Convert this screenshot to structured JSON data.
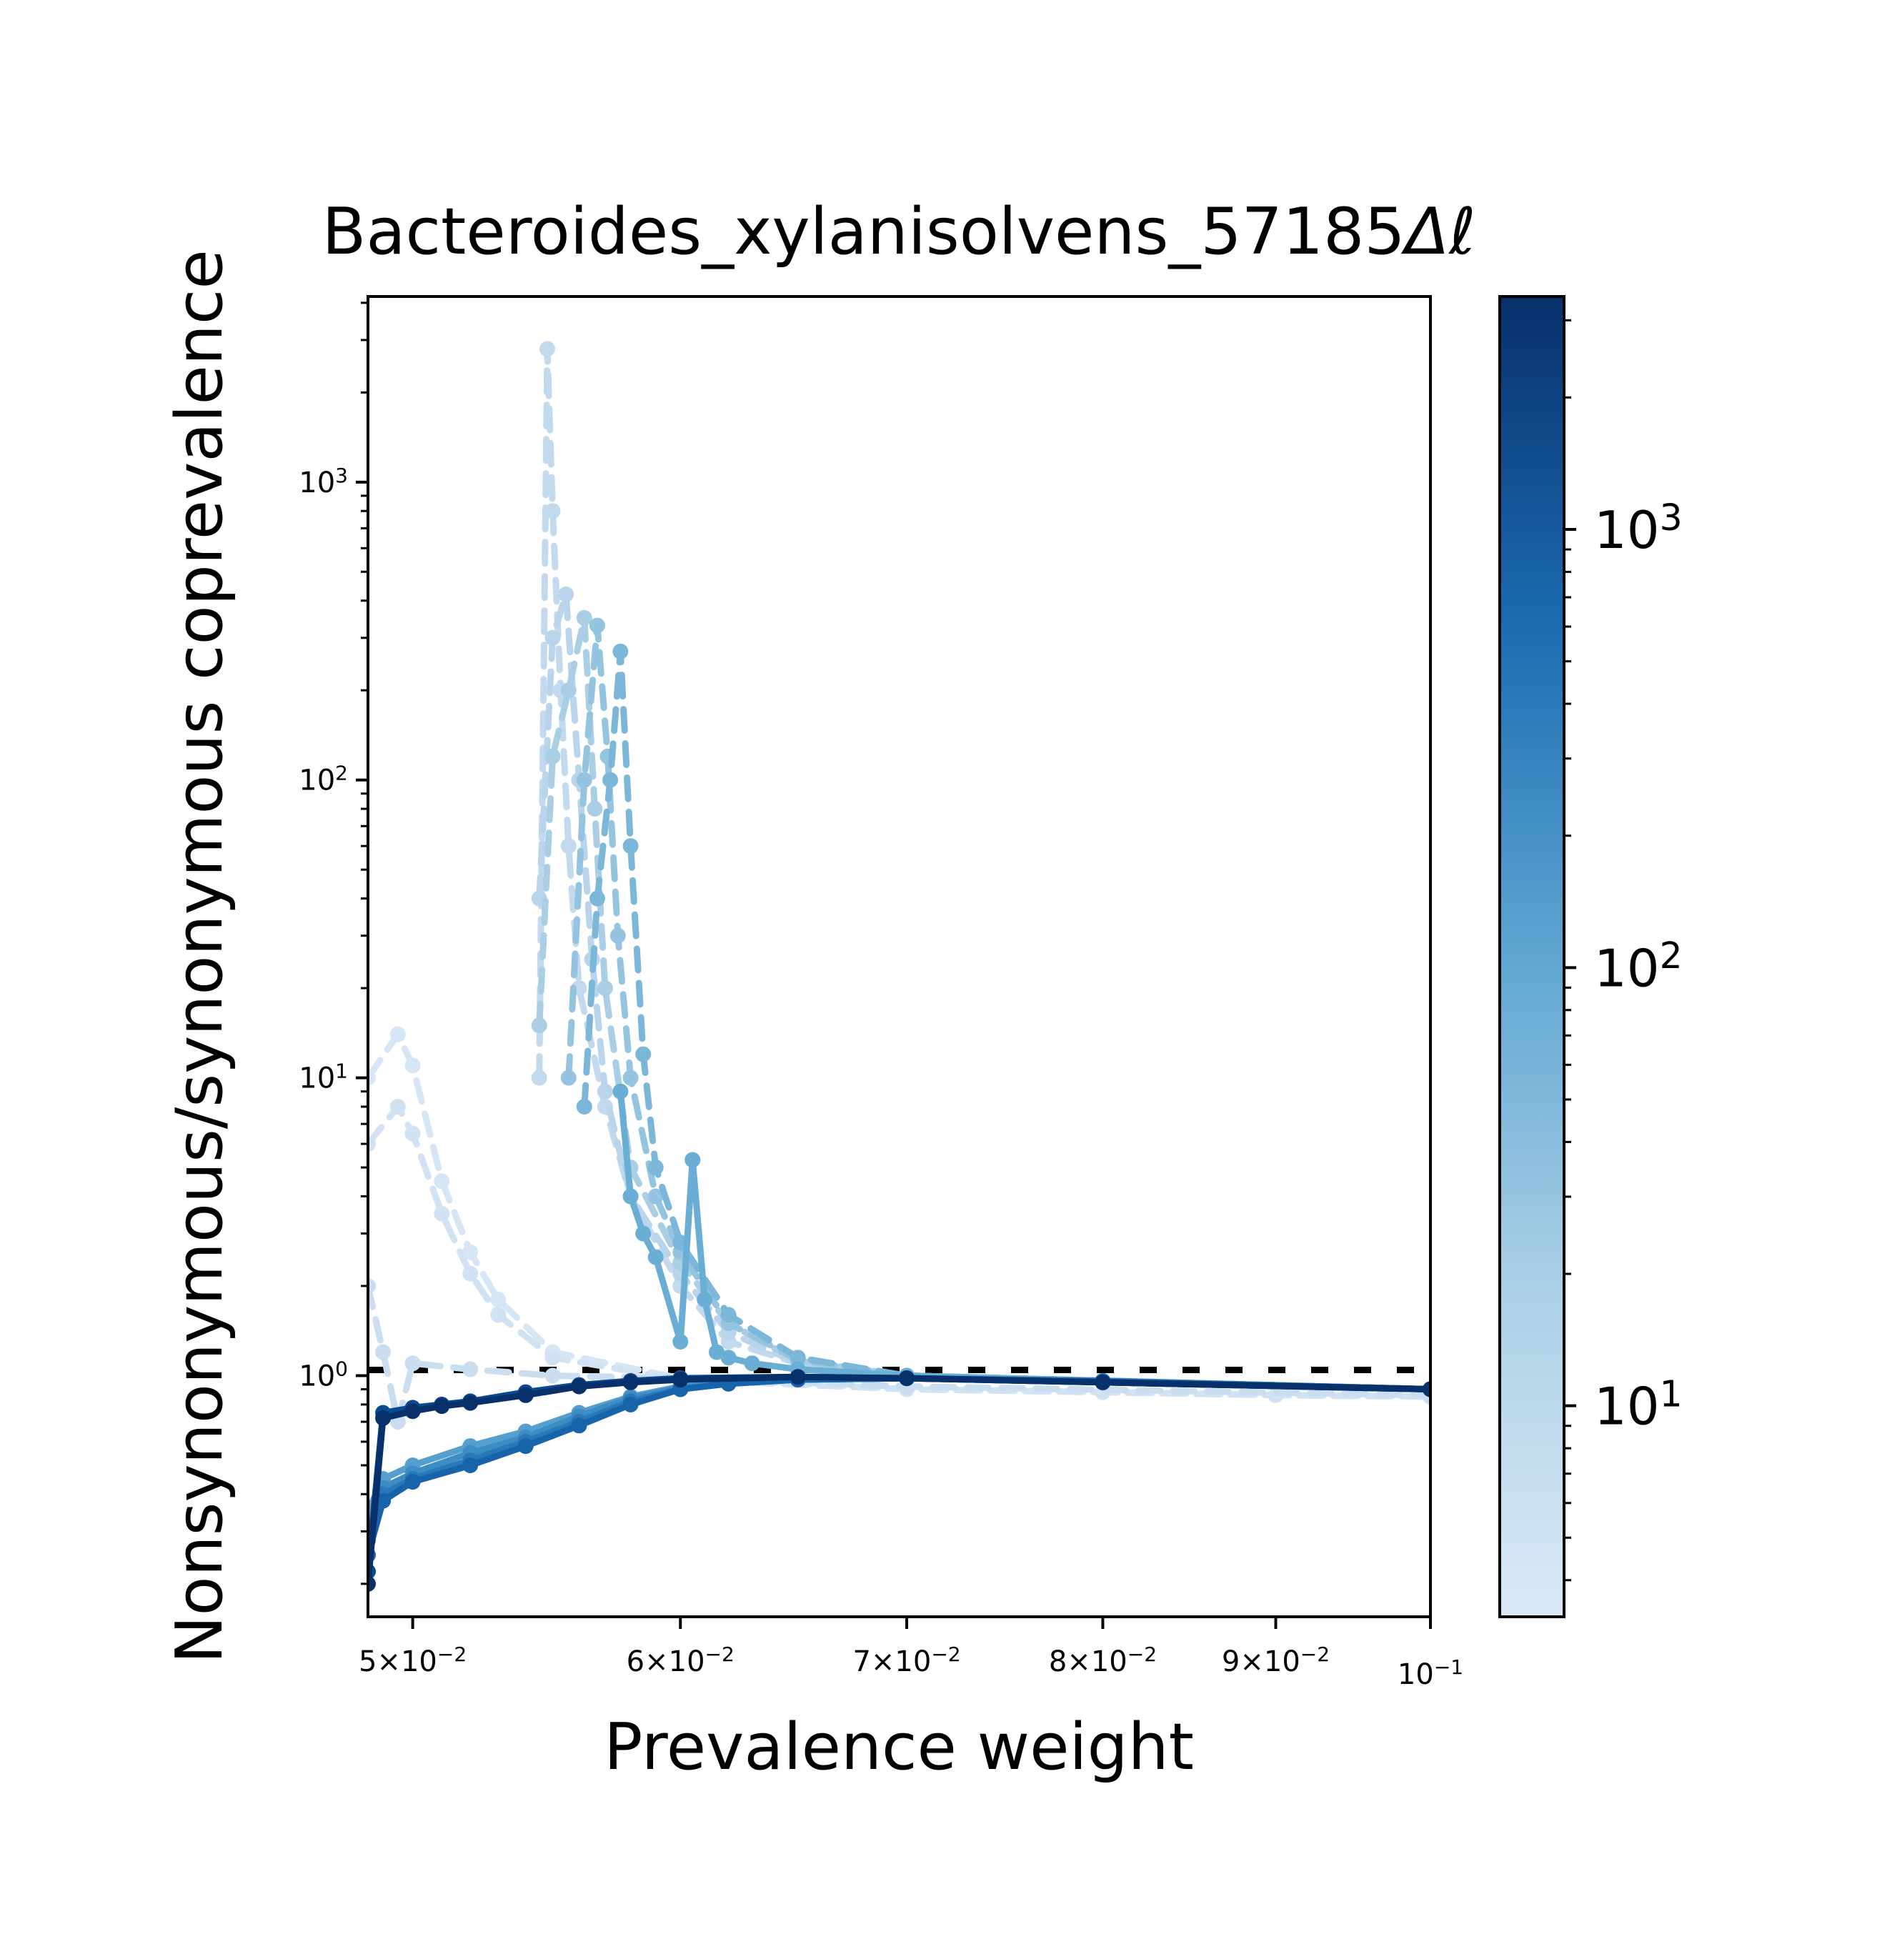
{
  "chart_data": {
    "type": "line",
    "title": "Bacteroides_xylanisolvens_57185",
    "colorbar_label": "Δℓ",
    "xlabel": "Prevalence weight",
    "ylabel": "Nonsynonymous/synonymous coprevalence",
    "xscale": "log",
    "yscale": "log",
    "xlim": [
      0.0485,
      0.1
    ],
    "ylim": [
      0.155,
      4200
    ],
    "x_ticks": [
      {
        "value": 0.05,
        "label": "5×10⁻²"
      },
      {
        "value": 0.06,
        "label": "6×10⁻²"
      },
      {
        "value": 0.07,
        "label": "7×10⁻²"
      },
      {
        "value": 0.08,
        "label": "8×10⁻²"
      },
      {
        "value": 0.09,
        "label": "9×10⁻²"
      },
      {
        "value": 0.1,
        "label": "10⁻¹"
      }
    ],
    "y_ticks": [
      {
        "value": 1,
        "label": "10⁰"
      },
      {
        "value": 10,
        "label": "10¹"
      },
      {
        "value": 100,
        "label": "10²"
      },
      {
        "value": 1000,
        "label": "10³"
      }
    ],
    "colorbar": {
      "colormap": "Blues",
      "scale": "log",
      "lim": [
        3.3,
        3400
      ],
      "ticks": [
        {
          "value": 10,
          "label": "10¹"
        },
        {
          "value": 100,
          "label": "10²"
        },
        {
          "value": 1000,
          "label": "10³"
        }
      ]
    },
    "reference_line": {
      "y": 1,
      "style": "dashed",
      "color": "#000000"
    },
    "series": [
      {
        "dl": 4,
        "style": "dashed",
        "color": "#d7e6f5",
        "x": [
          0.0485,
          0.0495,
          0.05,
          0.051,
          0.052,
          0.053,
          0.055,
          0.06,
          0.07,
          0.08,
          0.09,
          0.1
        ],
        "y": [
          10,
          14,
          11,
          4.5,
          2.6,
          1.8,
          1.2,
          0.98,
          0.9,
          0.88,
          0.86,
          0.85
        ]
      },
      {
        "dl": 5,
        "style": "dashed",
        "color": "#d1e2f3",
        "x": [
          0.0485,
          0.0495,
          0.05,
          0.051,
          0.052,
          0.053,
          0.055,
          0.06,
          0.07,
          0.08,
          0.09,
          0.1
        ],
        "y": [
          6,
          8,
          6.5,
          3.5,
          2.2,
          1.6,
          1.15,
          0.97,
          0.9,
          0.88,
          0.86,
          0.85
        ]
      },
      {
        "dl": 6,
        "style": "dashed",
        "color": "#cadef0",
        "x": [
          0.0485,
          0.049,
          0.0495,
          0.05,
          0.052,
          0.055,
          0.06,
          0.07,
          0.1
        ],
        "y": [
          2,
          1.2,
          0.7,
          1.1,
          1.05,
          1,
          0.98,
          0.92,
          0.86
        ]
      },
      {
        "dl": 8,
        "style": "dashed",
        "color": "#c2d9ee",
        "x": [
          0.0545,
          0.0548,
          0.055,
          0.0553,
          0.0556,
          0.056,
          0.057,
          0.058,
          0.06,
          0.062,
          0.065,
          0.07,
          0.08,
          0.1
        ],
        "y": [
          10,
          2800,
          800,
          200,
          60,
          20,
          8,
          4,
          2,
          1.3,
          1.1,
          1,
          0.95,
          0.9
        ]
      },
      {
        "dl": 10,
        "style": "dashed",
        "color": "#b9d4eb",
        "x": [
          0.0545,
          0.055,
          0.0555,
          0.056,
          0.0565,
          0.057,
          0.058,
          0.06,
          0.062,
          0.065,
          0.07,
          0.1
        ],
        "y": [
          40,
          300,
          420,
          100,
          25,
          9,
          4,
          2.2,
          1.4,
          1.1,
          1,
          0.9
        ]
      },
      {
        "dl": 14,
        "style": "dashed",
        "color": "#aacfe5",
        "x": [
          0.0545,
          0.055,
          0.0556,
          0.0562,
          0.0566,
          0.057,
          0.058,
          0.06,
          0.062,
          0.065,
          0.07,
          0.1
        ],
        "y": [
          15,
          120,
          200,
          350,
          80,
          20,
          5,
          2.4,
          1.5,
          1.12,
          1,
          0.9
        ]
      },
      {
        "dl": 20,
        "style": "dashed",
        "color": "#94c4df",
        "x": [
          0.0556,
          0.0562,
          0.0567,
          0.0571,
          0.0575,
          0.058,
          0.059,
          0.06,
          0.062,
          0.065,
          0.07,
          0.1
        ],
        "y": [
          10,
          100,
          330,
          120,
          30,
          10,
          4,
          2.6,
          1.5,
          1.13,
          1,
          0.9
        ]
      },
      {
        "dl": 30,
        "style": "dashed",
        "color": "#7cb7da",
        "x": [
          0.0562,
          0.0567,
          0.0572,
          0.0576,
          0.058,
          0.0585,
          0.059,
          0.06,
          0.062,
          0.065,
          0.07,
          0.1
        ],
        "y": [
          8,
          40,
          100,
          270,
          60,
          12,
          5,
          2.8,
          1.6,
          1.15,
          1,
          0.9
        ]
      },
      {
        "dl": 45,
        "style": "solid",
        "color": "#6aaed6",
        "x": [
          0.0576,
          0.058,
          0.0585,
          0.059,
          0.06,
          0.0605,
          0.061,
          0.0615,
          0.062,
          0.063,
          0.065,
          0.07,
          0.1
        ],
        "y": [
          9,
          4,
          3,
          2.5,
          1.3,
          5.3,
          1.8,
          1.2,
          1.15,
          1.1,
          1.05,
          1,
          0.9
        ]
      },
      {
        "dl": 70,
        "style": "solid",
        "color": "#549fcd",
        "x": [
          0.0485,
          0.049,
          0.05,
          0.052,
          0.054,
          0.056,
          0.058,
          0.06,
          0.062,
          0.065,
          0.07,
          0.08,
          0.1
        ],
        "y": [
          0.35,
          0.45,
          0.5,
          0.58,
          0.65,
          0.75,
          0.85,
          0.92,
          0.95,
          0.97,
          0.98,
          0.96,
          0.9
        ]
      },
      {
        "dl": 120,
        "style": "solid",
        "color": "#3d8dc4",
        "x": [
          0.0485,
          0.049,
          0.05,
          0.052,
          0.054,
          0.056,
          0.058,
          0.06,
          0.062,
          0.065,
          0.07,
          0.08,
          0.1
        ],
        "y": [
          0.3,
          0.42,
          0.47,
          0.55,
          0.62,
          0.73,
          0.84,
          0.91,
          0.95,
          0.97,
          0.98,
          0.96,
          0.9
        ]
      },
      {
        "dl": 250,
        "style": "solid",
        "color": "#2979b9",
        "x": [
          0.0485,
          0.049,
          0.05,
          0.052,
          0.054,
          0.056,
          0.058,
          0.06,
          0.062,
          0.065,
          0.07,
          0.08,
          0.1
        ],
        "y": [
          0.28,
          0.4,
          0.45,
          0.52,
          0.6,
          0.7,
          0.82,
          0.9,
          0.94,
          0.97,
          0.98,
          0.96,
          0.9
        ]
      },
      {
        "dl": 600,
        "style": "solid",
        "color": "#1764ab",
        "x": [
          0.0485,
          0.049,
          0.05,
          0.052,
          0.054,
          0.056,
          0.058,
          0.06,
          0.062,
          0.065,
          0.07,
          0.08,
          0.1
        ],
        "y": [
          0.25,
          0.38,
          0.44,
          0.5,
          0.58,
          0.68,
          0.8,
          0.9,
          0.94,
          0.97,
          0.98,
          0.95,
          0.9
        ]
      },
      {
        "dl": 1500,
        "style": "solid",
        "color": "#0a4a90",
        "x": [
          0.0485,
          0.049,
          0.05,
          0.051,
          0.052,
          0.054,
          0.056,
          0.058,
          0.06,
          0.065,
          0.07,
          0.08,
          0.1
        ],
        "y": [
          0.22,
          0.75,
          0.78,
          0.8,
          0.82,
          0.88,
          0.93,
          0.96,
          0.98,
          0.99,
          0.98,
          0.95,
          0.9
        ]
      },
      {
        "dl": 3000,
        "style": "solid",
        "color": "#08306b",
        "x": [
          0.0485,
          0.049,
          0.05,
          0.051,
          0.052,
          0.054,
          0.056,
          0.058,
          0.06,
          0.065,
          0.07,
          0.08,
          0.1
        ],
        "y": [
          0.2,
          0.72,
          0.76,
          0.79,
          0.81,
          0.86,
          0.92,
          0.95,
          0.97,
          0.99,
          0.98,
          0.95,
          0.9
        ]
      }
    ]
  }
}
